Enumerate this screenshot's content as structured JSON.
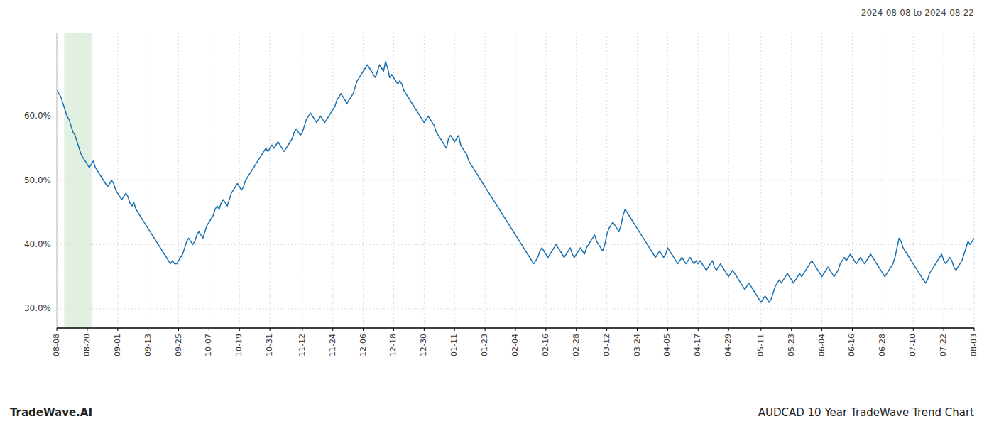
{
  "chart_data": {
    "type": "line",
    "title": "AUDCAD 10 Year TradeWave Trend Chart",
    "subtitle": "2024-08-08 to 2024-08-22",
    "annotation": "TradeWave.AI",
    "color": "#1a6faf",
    "grid": true,
    "ylim": [
      27.0,
      73.0
    ],
    "yticks": [
      {
        "value": 30.0,
        "label": "30.0%"
      },
      {
        "value": 40.0,
        "label": "40.0%"
      },
      {
        "value": 50.0,
        "label": "50.0%"
      },
      {
        "value": 60.0,
        "label": "60.0%"
      }
    ],
    "shaded_region": {
      "x_start": 3.624,
      "x_end": 17.214,
      "color": "#d6ead6"
    },
    "categories": [
      "08-08",
      null,
      null,
      null,
      null,
      null,
      null,
      null,
      null,
      null,
      null,
      null,
      null,
      null,
      null,
      "08-20",
      null,
      null,
      null,
      null,
      null,
      null,
      null,
      null,
      null,
      null,
      null,
      null,
      null,
      null,
      "09-01",
      null,
      null,
      null,
      null,
      null,
      null,
      null,
      null,
      null,
      null,
      null,
      null,
      null,
      null,
      "09-13",
      null,
      null,
      null,
      null,
      null,
      null,
      null,
      null,
      null,
      null,
      null,
      null,
      null,
      null,
      "09-25",
      null,
      null,
      null,
      null,
      null,
      null,
      null,
      null,
      null,
      null,
      null,
      null,
      null,
      null,
      "10-07",
      null,
      null,
      null,
      null,
      null,
      null,
      null,
      null,
      null,
      null,
      null,
      null,
      null,
      null,
      "10-19",
      null,
      null,
      null,
      null,
      null,
      null,
      null,
      null,
      null,
      null,
      null,
      null,
      null,
      null,
      "10-31",
      null,
      null,
      null,
      null,
      null,
      null,
      null,
      null,
      null,
      null,
      null,
      null,
      null,
      null,
      null,
      "11-12",
      null,
      null,
      null,
      null,
      null,
      null,
      null,
      null,
      null,
      null,
      null,
      null,
      null,
      null,
      "11-24",
      null,
      null,
      null,
      null,
      null,
      null,
      null,
      null,
      null,
      null,
      null,
      null,
      null,
      null,
      "12-06",
      null,
      null,
      null,
      null,
      null,
      null,
      null,
      null,
      null,
      null,
      null,
      null,
      null,
      null,
      "12-18",
      null,
      null,
      null,
      null,
      null,
      null,
      null,
      null,
      null,
      null,
      null,
      null,
      null,
      null,
      "12-30",
      null,
      null,
      null,
      null,
      null,
      null,
      null,
      null,
      null,
      null,
      null,
      null,
      null,
      null,
      "01-11",
      null,
      null,
      null,
      null,
      null,
      null,
      null,
      null,
      null,
      null,
      null,
      null,
      null,
      null,
      "01-23",
      null,
      null,
      null,
      null,
      null,
      null,
      null,
      null,
      null,
      null,
      null,
      null,
      null,
      null,
      "02-04",
      null,
      null,
      null,
      null,
      null,
      null,
      null,
      null,
      null,
      null,
      null,
      null,
      null,
      null,
      "02-16",
      null,
      null,
      null,
      null,
      null,
      null,
      null,
      null,
      null,
      null,
      null,
      null,
      null,
      null,
      "02-28",
      null,
      null,
      null,
      null,
      null,
      null,
      null,
      null,
      null,
      null,
      null,
      null,
      null,
      null,
      "03-12",
      null,
      null,
      null,
      null,
      null,
      null,
      null,
      null,
      null,
      null,
      null,
      null,
      null,
      null,
      "03-24",
      null,
      null,
      null,
      null,
      null,
      null,
      null,
      null,
      null,
      null,
      null,
      null,
      null,
      null,
      "04-05",
      null,
      null,
      null,
      null,
      null,
      null,
      null,
      null,
      null,
      null,
      null,
      null,
      null,
      null,
      "04-17",
      null,
      null,
      null,
      null,
      null,
      null,
      null,
      null,
      null,
      null,
      null,
      null,
      null,
      null,
      "04-29",
      null,
      null,
      null,
      null,
      null,
      null,
      null,
      null,
      null,
      null,
      null,
      null,
      null,
      null,
      null,
      "05-11",
      null,
      null,
      null,
      null,
      null,
      null,
      null,
      null,
      null,
      null,
      null,
      null,
      null,
      null,
      "05-23",
      null,
      null,
      null,
      null,
      null,
      null,
      null,
      null,
      null,
      null,
      null,
      null,
      null,
      null,
      "06-04",
      null,
      null,
      null,
      null,
      null,
      null,
      null,
      null,
      null,
      null,
      null,
      null,
      null,
      null,
      "06-16",
      null,
      null,
      null,
      null,
      null,
      null,
      null,
      null,
      null,
      null,
      null,
      null,
      null,
      null,
      "06-28",
      null,
      null,
      null,
      null,
      null,
      null,
      null,
      null,
      null,
      null,
      null,
      null,
      null,
      null,
      "07-10",
      null,
      null,
      null,
      null,
      null,
      null,
      null,
      null,
      null,
      null,
      null,
      null,
      null,
      null,
      "07-22",
      null,
      null,
      null,
      null,
      null,
      null,
      null,
      null,
      null,
      null,
      null,
      null,
      null,
      null,
      "08-03"
    ],
    "values": [
      64.0,
      63.5,
      63.0,
      62.0,
      61.0,
      60.0,
      59.5,
      58.5,
      57.5,
      57.0,
      56.0,
      55.0,
      54.0,
      53.5,
      53.0,
      52.5,
      52.0,
      52.5,
      53.0,
      52.0,
      51.5,
      51.0,
      50.5,
      50.0,
      49.5,
      49.0,
      49.5,
      50.0,
      49.5,
      48.5,
      48.0,
      47.5,
      47.0,
      47.5,
      48.0,
      47.5,
      46.5,
      46.0,
      46.5,
      45.5,
      45.0,
      44.5,
      44.0,
      43.5,
      43.0,
      42.5,
      42.0,
      41.5,
      41.0,
      40.5,
      40.0,
      39.5,
      39.0,
      38.5,
      38.0,
      37.5,
      37.0,
      37.5,
      37.0,
      37.0,
      37.5,
      38.0,
      38.5,
      39.5,
      40.5,
      41.0,
      40.5,
      40.0,
      40.5,
      41.5,
      42.0,
      41.5,
      41.0,
      42.0,
      43.0,
      43.5,
      44.0,
      44.5,
      45.5,
      46.0,
      45.5,
      46.5,
      47.0,
      46.5,
      46.0,
      47.0,
      48.0,
      48.5,
      49.0,
      49.5,
      49.0,
      48.5,
      49.0,
      50.0,
      50.5,
      51.0,
      51.5,
      52.0,
      52.5,
      53.0,
      53.5,
      54.0,
      54.5,
      55.0,
      54.5,
      55.0,
      55.5,
      55.0,
      55.5,
      56.0,
      55.5,
      55.0,
      54.5,
      55.0,
      55.5,
      56.0,
      56.5,
      57.5,
      58.0,
      57.5,
      57.0,
      57.5,
      58.5,
      59.5,
      60.0,
      60.5,
      60.0,
      59.5,
      59.0,
      59.5,
      60.0,
      59.5,
      59.0,
      59.5,
      60.0,
      60.5,
      61.0,
      61.5,
      62.5,
      63.0,
      63.5,
      63.0,
      62.5,
      62.0,
      62.5,
      63.0,
      63.5,
      64.5,
      65.5,
      66.0,
      66.5,
      67.0,
      67.5,
      68.0,
      67.5,
      67.0,
      66.5,
      66.0,
      67.0,
      68.0,
      67.5,
      67.0,
      68.5,
      67.5,
      66.0,
      66.5,
      66.0,
      65.5,
      65.0,
      65.5,
      65.0,
      64.0,
      63.5,
      63.0,
      62.5,
      62.0,
      61.5,
      61.0,
      60.5,
      60.0,
      59.5,
      59.0,
      59.5,
      60.0,
      59.5,
      59.0,
      58.5,
      57.5,
      57.0,
      56.5,
      56.0,
      55.5,
      55.0,
      56.5,
      57.0,
      56.5,
      56.0,
      56.5,
      57.0,
      55.5,
      55.0,
      54.5,
      54.0,
      53.0,
      52.5,
      52.0,
      51.5,
      51.0,
      50.5,
      50.0,
      49.5,
      49.0,
      48.5,
      48.0,
      47.5,
      47.0,
      46.5,
      46.0,
      45.5,
      45.0,
      44.5,
      44.0,
      43.5,
      43.0,
      42.5,
      42.0,
      41.5,
      41.0,
      40.5,
      40.0,
      39.5,
      39.0,
      38.5,
      38.0,
      37.5,
      37.0,
      37.5,
      38.0,
      39.0,
      39.5,
      39.0,
      38.5,
      38.0,
      38.5,
      39.0,
      39.5,
      40.0,
      39.5,
      39.0,
      38.5,
      38.0,
      38.5,
      39.0,
      39.5,
      38.5,
      38.0,
      38.5,
      39.0,
      39.5,
      39.0,
      38.5,
      39.5,
      40.0,
      40.5,
      41.0,
      41.5,
      40.5,
      40.0,
      39.5,
      39.0,
      40.0,
      41.5,
      42.5,
      43.0,
      43.5,
      43.0,
      42.5,
      42.0,
      43.0,
      44.5,
      45.5,
      45.0,
      44.5,
      44.0,
      43.5,
      43.0,
      42.5,
      42.0,
      41.5,
      41.0,
      40.5,
      40.0,
      39.5,
      39.0,
      38.5,
      38.0,
      38.5,
      39.0,
      38.5,
      38.0,
      38.5,
      39.5,
      39.0,
      38.5,
      38.0,
      37.5,
      37.0,
      37.5,
      38.0,
      37.5,
      37.0,
      37.5,
      38.0,
      37.5,
      37.0,
      37.5,
      37.0,
      37.5,
      37.0,
      36.5,
      36.0,
      36.5,
      37.0,
      37.5,
      36.5,
      36.0,
      36.5,
      37.0,
      36.5,
      36.0,
      35.5,
      35.0,
      35.5,
      36.0,
      35.5,
      35.0,
      34.5,
      34.0,
      33.5,
      33.0,
      33.5,
      34.0,
      33.5,
      33.0,
      32.5,
      32.0,
      31.5,
      31.0,
      31.5,
      32.0,
      31.5,
      31.0,
      31.5,
      32.5,
      33.5,
      34.0,
      34.5,
      34.0,
      34.5,
      35.0,
      35.5,
      35.0,
      34.5,
      34.0,
      34.5,
      35.0,
      35.5,
      35.0,
      35.5,
      36.0,
      36.5,
      37.0,
      37.5,
      37.0,
      36.5,
      36.0,
      35.5,
      35.0,
      35.5,
      36.0,
      36.5,
      36.0,
      35.5,
      35.0,
      35.5,
      36.0,
      37.0,
      37.5,
      38.0,
      37.5,
      38.0,
      38.5,
      38.0,
      37.5,
      37.0,
      37.5,
      38.0,
      37.5,
      37.0,
      37.5,
      38.0,
      38.5,
      38.0,
      37.5,
      37.0,
      36.5,
      36.0,
      35.5,
      35.0,
      35.5,
      36.0,
      36.5,
      37.0,
      38.0,
      39.5,
      41.0,
      40.5,
      39.5,
      39.0,
      38.5,
      38.0,
      37.5,
      37.0,
      36.5,
      36.0,
      35.5,
      35.0,
      34.5,
      34.0,
      34.5,
      35.5,
      36.0,
      36.5,
      37.0,
      37.5,
      38.0,
      38.5,
      37.5,
      37.0,
      37.5,
      38.0,
      37.5,
      36.5,
      36.0,
      36.5,
      37.0,
      37.5,
      38.5,
      39.5,
      40.5,
      40.0,
      40.5,
      41.0
    ]
  }
}
